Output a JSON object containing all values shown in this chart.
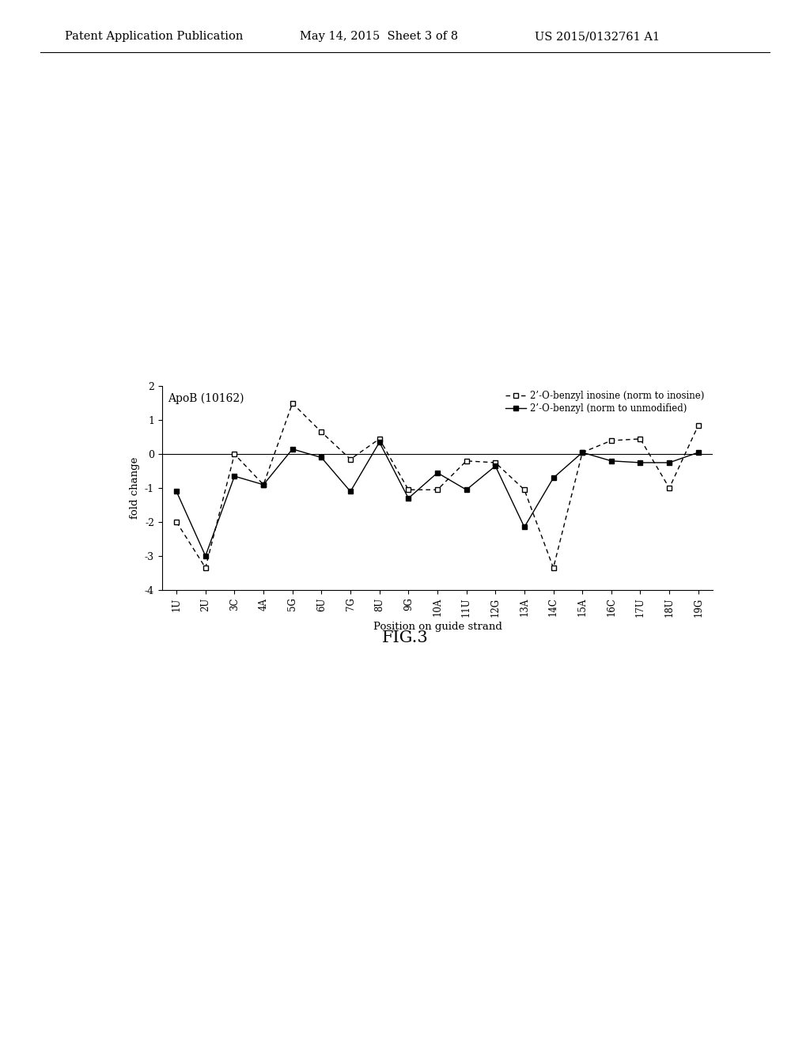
{
  "x_labels": [
    "1U",
    "2U",
    "3C",
    "4A",
    "5G",
    "6U",
    "7G",
    "8U",
    "9G",
    "10A",
    "11U",
    "12G",
    "13A",
    "14C",
    "15A",
    "16C",
    "17U",
    "18U",
    "19G"
  ],
  "series1": [
    -2.0,
    -3.35,
    0.0,
    -0.9,
    1.5,
    0.65,
    -0.15,
    0.45,
    -1.05,
    -1.05,
    -0.2,
    -0.25,
    -1.05,
    -3.35,
    0.05,
    0.4,
    0.45,
    -1.0,
    0.85
  ],
  "series2": [
    -1.1,
    -3.0,
    -0.65,
    -0.9,
    0.15,
    -0.1,
    -1.1,
    0.35,
    -1.3,
    -0.55,
    -1.05,
    -0.35,
    -2.15,
    -0.7,
    0.05,
    -0.2,
    -0.25,
    -0.25,
    0.05
  ],
  "ylabel": "fold change",
  "xlabel": "Position on guide strand",
  "annotation": "ApoB (10162)",
  "ylim": [
    -4,
    2
  ],
  "yticks": [
    -4,
    -3,
    -2,
    -1,
    0,
    1,
    2
  ],
  "figure_label": "FIG.3",
  "header_left": "Patent Application Publication",
  "header_mid": "May 14, 2015  Sheet 3 of 8",
  "header_right": "US 2015/0132761 A1",
  "background_color": "#ffffff",
  "legend_label1": "2’-O-benzyl inosine (norm to inosine)",
  "legend_label2": "2’-O-benzyl (norm to unmodified)"
}
